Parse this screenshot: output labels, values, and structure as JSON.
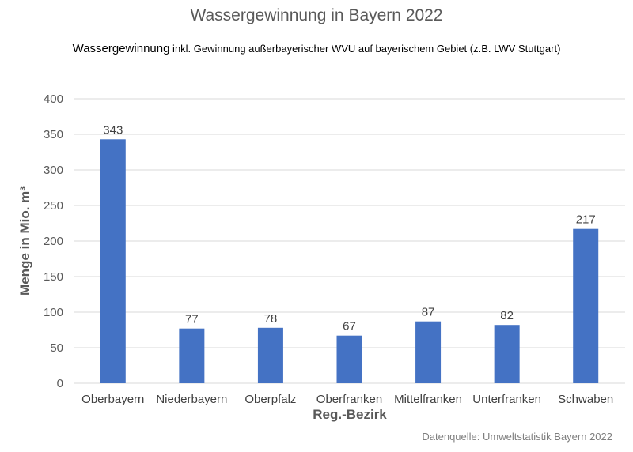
{
  "chart_data": {
    "type": "bar",
    "title": "Wassergewinnung in Bayern 2022",
    "subtitle_lead": "Wassergewinnung",
    "subtitle_rest": " inkl. Gewinnung außerbayerischer WVU auf bayerischem Gebiet (z.B. LWV Stuttgart)",
    "xlabel": "Reg.-Bezirk",
    "ylabel": "Menge in Mio. m³",
    "source": "Datenquelle: Umweltstatistik Bayern 2022",
    "categories": [
      "Oberbayern",
      "Niederbayern",
      "Oberpfalz",
      "Oberfranken",
      "Mittelfranken",
      "Unterfranken",
      "Schwaben"
    ],
    "values": [
      343,
      77,
      78,
      67,
      87,
      82,
      217
    ],
    "ylim": [
      0,
      400
    ],
    "yticks": [
      0,
      50,
      100,
      150,
      200,
      250,
      300,
      350,
      400
    ],
    "grid": true,
    "bar_color": "#4472c4",
    "grid_color": "#d9d9d9"
  }
}
